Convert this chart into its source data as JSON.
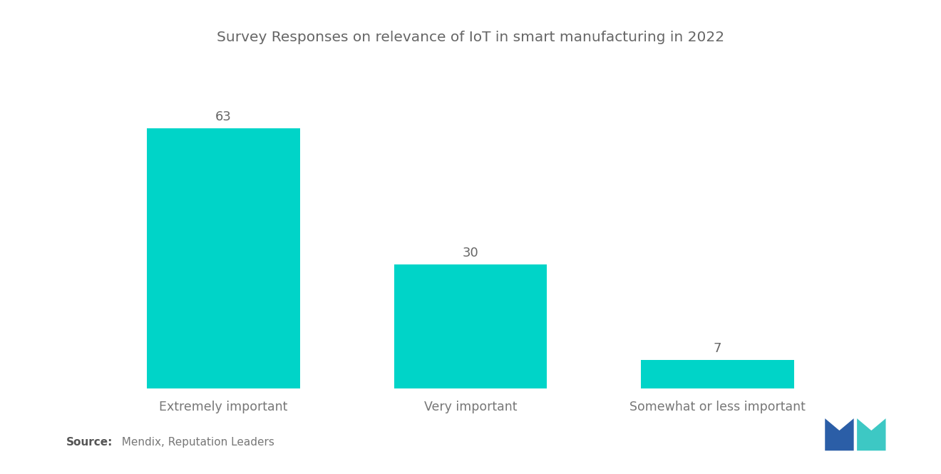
{
  "title": "Survey Responses on relevance of IoT in smart manufacturing in 2022",
  "categories": [
    "Extremely important",
    "Very important",
    "Somewhat or less important"
  ],
  "values": [
    63,
    30,
    7
  ],
  "bar_color": "#00D4C8",
  "background_color": "#ffffff",
  "title_fontsize": 14.5,
  "label_fontsize": 12.5,
  "value_fontsize": 13,
  "source_bold": "Source:",
  "source_rest": "  Mendix, Reputation Leaders",
  "ylim": [
    0,
    78
  ],
  "bar_width": 0.62,
  "x_positions": [
    0,
    1,
    2
  ],
  "title_color": "#666666",
  "label_color": "#777777",
  "value_color": "#666666"
}
